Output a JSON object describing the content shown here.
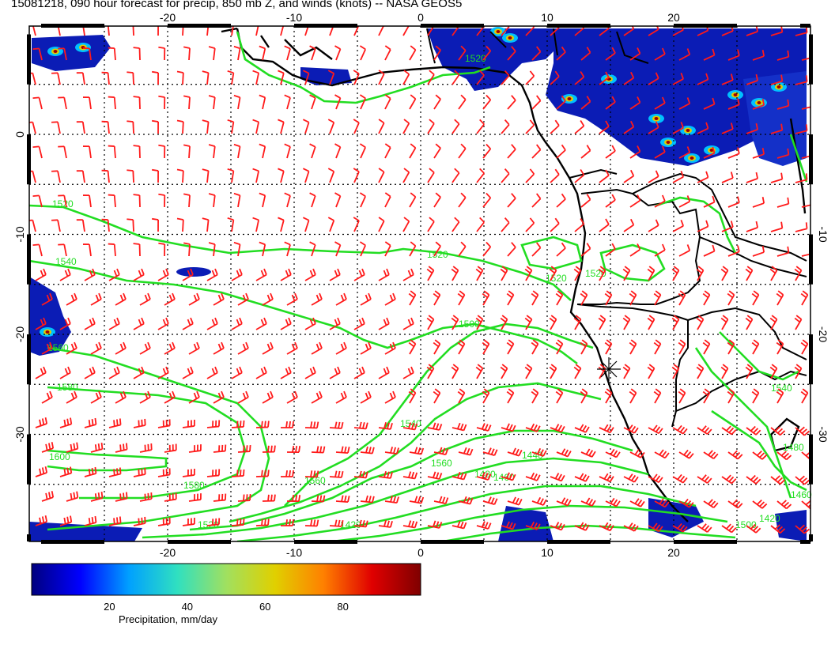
{
  "title": "15081218, 090 hour forecast for precip, 850 mb Z, and winds (knots) -- NASA GEOS5",
  "map": {
    "lon_ticks_top": [
      "-20",
      "-10",
      "0",
      "10",
      "20"
    ],
    "lon_ticks_bottom": [
      "-20",
      "-10",
      "0",
      "10",
      "20"
    ],
    "lat_ticks_left": [
      "0",
      "-10",
      "-20",
      "-30"
    ],
    "lat_ticks_right": [
      "-10",
      "-20",
      "-30"
    ],
    "contour_labels": [
      "1520",
      "1520",
      "1520",
      "1540",
      "1560",
      "1580",
      "1600",
      "1580",
      "1560",
      "1540",
      "1560",
      "1520",
      "1520",
      "1500",
      "1480",
      "1460",
      "1440",
      "1420",
      "1520",
      "1480",
      "1460",
      "1420",
      "1500",
      "1540"
    ],
    "colors": {
      "land_outline": "#000000",
      "contour": "#22dd22",
      "wind_barb": "#ff1a1a",
      "grid": "#000000"
    }
  },
  "colorbar": {
    "ticks": [
      "20",
      "40",
      "60",
      "80"
    ],
    "label": "Precipitation, mm/day",
    "range": [
      0,
      100
    ],
    "stops": [
      "#00007f",
      "#0000ff",
      "#00a0ff",
      "#30e0c0",
      "#a0e060",
      "#e0d000",
      "#ff8000",
      "#e00000",
      "#7f0000"
    ]
  }
}
